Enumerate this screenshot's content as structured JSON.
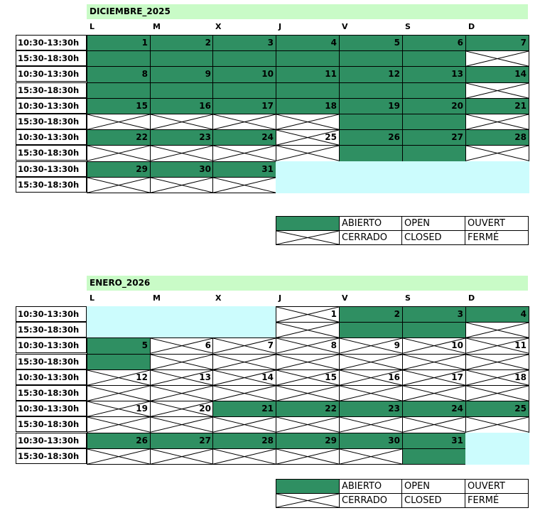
{
  "days_header": [
    "L",
    "M",
    "X",
    "J",
    "V",
    "S",
    "D"
  ],
  "slots": [
    "10:30-13:30h",
    "15:30-18:30h"
  ],
  "legend": {
    "open": [
      "ABIERTO",
      "OPEN",
      "OUVERT"
    ],
    "closed": [
      "CERRADO",
      "CLOSED",
      "FERMÉ"
    ]
  },
  "colors": {
    "open": "#2f8f62",
    "empty": "#ccfcfd",
    "title_bg": "#c9fbc7"
  },
  "calendars": [
    {
      "title": "DICIEMBRE_2025",
      "weeks": [
        {
          "days": [
            {
              "n": "1",
              "am": "open",
              "pm": "open"
            },
            {
              "n": "2",
              "am": "open",
              "pm": "open"
            },
            {
              "n": "3",
              "am": "open",
              "pm": "open"
            },
            {
              "n": "4",
              "am": "open",
              "pm": "open"
            },
            {
              "n": "5",
              "am": "open",
              "pm": "open"
            },
            {
              "n": "6",
              "am": "open",
              "pm": "open"
            },
            {
              "n": "7",
              "am": "open",
              "pm": "closed"
            }
          ]
        },
        {
          "days": [
            {
              "n": "8",
              "am": "open",
              "pm": "open"
            },
            {
              "n": "9",
              "am": "open",
              "pm": "open"
            },
            {
              "n": "10",
              "am": "open",
              "pm": "open"
            },
            {
              "n": "11",
              "am": "open",
              "pm": "open"
            },
            {
              "n": "12",
              "am": "open",
              "pm": "open"
            },
            {
              "n": "13",
              "am": "open",
              "pm": "open"
            },
            {
              "n": "14",
              "am": "open",
              "pm": "closed"
            }
          ]
        },
        {
          "days": [
            {
              "n": "15",
              "am": "open",
              "pm": "closed"
            },
            {
              "n": "16",
              "am": "open",
              "pm": "closed"
            },
            {
              "n": "17",
              "am": "open",
              "pm": "closed"
            },
            {
              "n": "18",
              "am": "open",
              "pm": "closed"
            },
            {
              "n": "19",
              "am": "open",
              "pm": "open"
            },
            {
              "n": "20",
              "am": "open",
              "pm": "open"
            },
            {
              "n": "21",
              "am": "open",
              "pm": "closed"
            }
          ]
        },
        {
          "days": [
            {
              "n": "22",
              "am": "open",
              "pm": "closed"
            },
            {
              "n": "23",
              "am": "open",
              "pm": "closed"
            },
            {
              "n": "24",
              "am": "open",
              "pm": "closed"
            },
            {
              "n": "25",
              "am": "closed",
              "pm": "closed"
            },
            {
              "n": "26",
              "am": "open",
              "pm": "open"
            },
            {
              "n": "27",
              "am": "open",
              "pm": "open"
            },
            {
              "n": "28",
              "am": "open",
              "pm": "closed"
            }
          ]
        },
        {
          "days": [
            {
              "n": "29",
              "am": "open",
              "pm": "closed"
            },
            {
              "n": "30",
              "am": "open",
              "pm": "closed"
            },
            {
              "n": "31",
              "am": "open",
              "pm": "closed"
            },
            {
              "n": "",
              "am": "empty",
              "pm": "empty"
            },
            {
              "n": "",
              "am": "empty",
              "pm": "empty"
            },
            {
              "n": "",
              "am": "empty",
              "pm": "empty"
            },
            {
              "n": "",
              "am": "empty",
              "pm": "empty"
            }
          ]
        }
      ]
    },
    {
      "title": "ENERO_2026",
      "weeks": [
        {
          "days": [
            {
              "n": "",
              "am": "empty",
              "pm": "empty"
            },
            {
              "n": "",
              "am": "empty",
              "pm": "empty"
            },
            {
              "n": "",
              "am": "empty",
              "pm": "empty"
            },
            {
              "n": "1",
              "am": "closed",
              "pm": "closed"
            },
            {
              "n": "2",
              "am": "open",
              "pm": "open"
            },
            {
              "n": "3",
              "am": "open",
              "pm": "open"
            },
            {
              "n": "4",
              "am": "open",
              "pm": "closed"
            }
          ]
        },
        {
          "days": [
            {
              "n": "5",
              "am": "open",
              "pm": "open"
            },
            {
              "n": "6",
              "am": "closed",
              "pm": "closed"
            },
            {
              "n": "7",
              "am": "closed",
              "pm": "closed"
            },
            {
              "n": "8",
              "am": "closed",
              "pm": "closed"
            },
            {
              "n": "9",
              "am": "closed",
              "pm": "closed"
            },
            {
              "n": "10",
              "am": "closed",
              "pm": "closed"
            },
            {
              "n": "11",
              "am": "closed",
              "pm": "closed"
            }
          ]
        },
        {
          "days": [
            {
              "n": "12",
              "am": "closed",
              "pm": "closed"
            },
            {
              "n": "13",
              "am": "closed",
              "pm": "closed"
            },
            {
              "n": "14",
              "am": "closed",
              "pm": "closed"
            },
            {
              "n": "15",
              "am": "closed",
              "pm": "closed"
            },
            {
              "n": "16",
              "am": "closed",
              "pm": "closed"
            },
            {
              "n": "17",
              "am": "closed",
              "pm": "closed"
            },
            {
              "n": "18",
              "am": "closed",
              "pm": "closed"
            }
          ]
        },
        {
          "days": [
            {
              "n": "19",
              "am": "closed",
              "pm": "closed"
            },
            {
              "n": "20",
              "am": "closed",
              "pm": "closed"
            },
            {
              "n": "21",
              "am": "open",
              "pm": "closed"
            },
            {
              "n": "22",
              "am": "open",
              "pm": "closed"
            },
            {
              "n": "23",
              "am": "open",
              "pm": "closed"
            },
            {
              "n": "24",
              "am": "open",
              "pm": "closed"
            },
            {
              "n": "25",
              "am": "open",
              "pm": "closed"
            }
          ]
        },
        {
          "days": [
            {
              "n": "26",
              "am": "open",
              "pm": "closed"
            },
            {
              "n": "27",
              "am": "open",
              "pm": "closed"
            },
            {
              "n": "28",
              "am": "open",
              "pm": "closed"
            },
            {
              "n": "29",
              "am": "open",
              "pm": "closed"
            },
            {
              "n": "30",
              "am": "open",
              "pm": "closed"
            },
            {
              "n": "31",
              "am": "open",
              "pm": "open"
            },
            {
              "n": "",
              "am": "empty",
              "pm": "empty"
            }
          ]
        }
      ]
    }
  ]
}
